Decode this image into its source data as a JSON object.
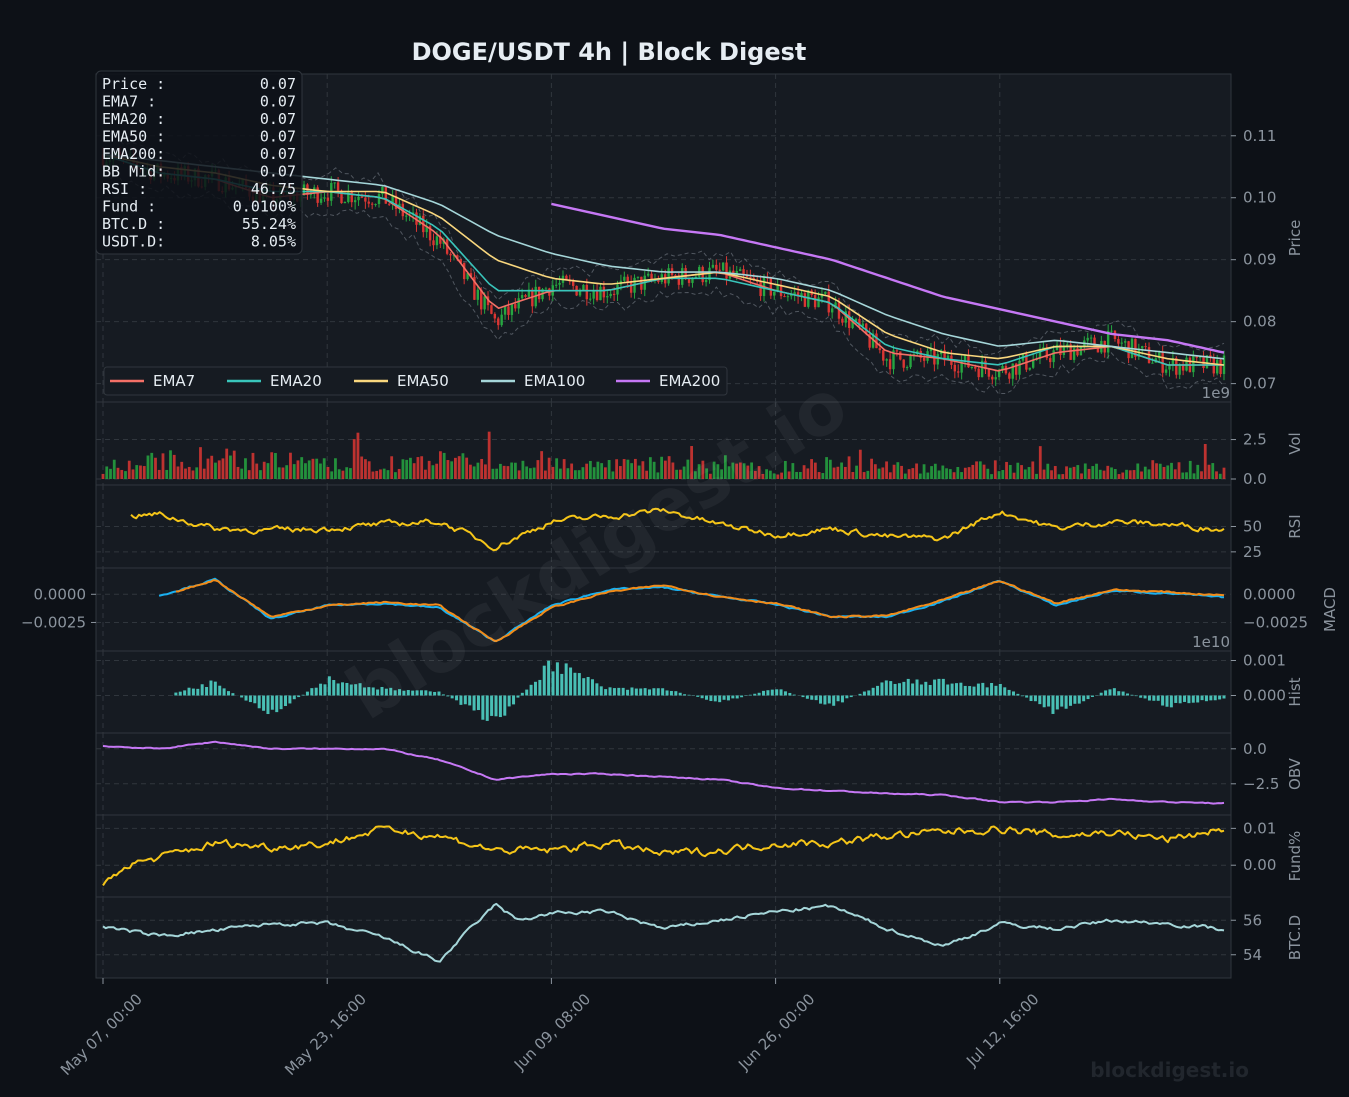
{
  "title": "DOGE/USDT  4h  |  Block Digest",
  "watermark": "blockdigest.io",
  "footer_brand": "blockdigest.io",
  "colors": {
    "background": "#0d1117",
    "panel": "#161b22",
    "grid": "#30363d",
    "axis_text": "#8b949e",
    "up": "#26a641",
    "down": "#da3633",
    "ema7": "#f47067",
    "ema20": "#39c5bb",
    "ema50": "#f9d77e",
    "ema100": "#a5d6d9",
    "ema200": "#c678f5",
    "rsi": "#f5c518",
    "macd": "#1ab0f0",
    "signal": "#f28b18",
    "hist": "#4fd1c5",
    "obv": "#c678f5",
    "funding": "#f5c518",
    "btcd": "#a5d6d9"
  },
  "info_box": [
    {
      "label": "Price :",
      "value": "0.07"
    },
    {
      "label": "EMA7  :",
      "value": "0.07"
    },
    {
      "label": "EMA20 :",
      "value": "0.07"
    },
    {
      "label": "EMA50 :",
      "value": "0.07"
    },
    {
      "label": "EMA200:",
      "value": "0.07"
    },
    {
      "label": "BB Mid:",
      "value": "0.07"
    },
    {
      "label": "RSI   :",
      "value": "46.75"
    },
    {
      "label": "Fund  :",
      "value": "0.0100%"
    },
    {
      "label": "BTC.D :",
      "value": "55.24%"
    },
    {
      "label": "USDT.D:",
      "value": "8.05%"
    }
  ],
  "legend": [
    {
      "name": "EMA7",
      "color_key": "ema7"
    },
    {
      "name": "EMA20",
      "color_key": "ema20"
    },
    {
      "name": "EMA50",
      "color_key": "ema50"
    },
    {
      "name": "EMA100",
      "color_key": "ema100"
    },
    {
      "name": "EMA200",
      "color_key": "ema200"
    }
  ],
  "x_ticks": [
    "May 07, 00:00",
    "May 23, 16:00",
    "Jun 09, 08:00",
    "Jun 26, 00:00",
    "Jul 12, 16:00"
  ],
  "chart_data": {
    "type": "line",
    "x_start": "May 07, 00:00",
    "x_end": "Jul 29, 00:00",
    "x_interval": "4h",
    "panels": [
      {
        "id": "price",
        "ylabel": "Price",
        "ylim": [
          0.068,
          0.119
        ],
        "yticks": [
          0.07,
          0.08,
          0.09,
          0.1,
          0.11
        ],
        "ytick_labels": [
          "0.07",
          "0.08",
          "0.09",
          "0.10",
          "0.11"
        ],
        "series": [
          {
            "name": "Price",
            "color_key": "ema7",
            "x": [
              0,
              5,
              10,
              15,
              20,
              25,
              30,
              35,
              40,
              45,
              50,
              55,
              60,
              65,
              70,
              75,
              80,
              85,
              90,
              95,
              100
            ],
            "values": [
              0.107,
              0.104,
              0.103,
              0.1,
              0.101,
              0.1,
              0.093,
              0.08,
              0.086,
              0.085,
              0.087,
              0.088,
              0.085,
              0.083,
              0.074,
              0.074,
              0.072,
              0.075,
              0.077,
              0.073,
              0.073
            ]
          },
          {
            "name": "EMA7",
            "color_key": "ema7",
            "x": [
              0,
              5,
              10,
              15,
              20,
              25,
              30,
              35,
              40,
              45,
              50,
              55,
              60,
              65,
              70,
              75,
              80,
              85,
              90,
              95,
              100
            ],
            "values": [
              0.107,
              0.104,
              0.103,
              0.1,
              0.101,
              0.1,
              0.094,
              0.082,
              0.085,
              0.085,
              0.087,
              0.088,
              0.085,
              0.083,
              0.075,
              0.074,
              0.072,
              0.075,
              0.076,
              0.073,
              0.073
            ]
          },
          {
            "name": "EMA20",
            "color_key": "ema20",
            "x": [
              0,
              5,
              10,
              15,
              20,
              25,
              30,
              35,
              40,
              45,
              50,
              55,
              60,
              65,
              70,
              75,
              80,
              85,
              90,
              95,
              100
            ],
            "values": [
              0.107,
              0.104,
              0.103,
              0.101,
              0.101,
              0.1,
              0.095,
              0.085,
              0.085,
              0.085,
              0.087,
              0.087,
              0.085,
              0.083,
              0.076,
              0.074,
              0.073,
              0.076,
              0.076,
              0.073,
              0.073
            ]
          },
          {
            "name": "EMA50",
            "color_key": "ema50",
            "x": [
              0,
              5,
              10,
              15,
              20,
              25,
              30,
              35,
              40,
              45,
              50,
              55,
              60,
              65,
              70,
              75,
              80,
              85,
              90,
              95,
              100
            ],
            "values": [
              0.107,
              0.105,
              0.104,
              0.102,
              0.101,
              0.101,
              0.097,
              0.09,
              0.087,
              0.086,
              0.087,
              0.088,
              0.086,
              0.084,
              0.078,
              0.075,
              0.074,
              0.076,
              0.076,
              0.074,
              0.073
            ]
          },
          {
            "name": "EMA100",
            "color_key": "ema100",
            "x": [
              0,
              5,
              10,
              15,
              20,
              25,
              30,
              35,
              40,
              45,
              50,
              55,
              60,
              65,
              70,
              75,
              80,
              85,
              90,
              95,
              100
            ],
            "values": [
              0.107,
              0.106,
              0.105,
              0.104,
              0.103,
              0.102,
              0.099,
              0.094,
              0.091,
              0.089,
              0.088,
              0.088,
              0.087,
              0.085,
              0.081,
              0.078,
              0.076,
              0.077,
              0.076,
              0.075,
              0.074
            ]
          },
          {
            "name": "EMA200",
            "color_key": "ema200",
            "x": [
              40,
              45,
              50,
              55,
              60,
              65,
              70,
              75,
              80,
              85,
              90,
              95,
              100
            ],
            "values": [
              0.099,
              0.097,
              0.095,
              0.094,
              0.092,
              0.09,
              0.087,
              0.084,
              0.082,
              0.08,
              0.078,
              0.077,
              0.075
            ]
          }
        ]
      },
      {
        "id": "volume",
        "ylabel": "Vol",
        "ylim": [
          0,
          4.5
        ],
        "yticks": [
          0,
          2.5
        ],
        "ytick_labels": [
          "0.0",
          "2.5"
        ],
        "offset_label": "1e9",
        "series": [
          {
            "name": "Volume",
            "color_key": "up",
            "x": [
              0,
              5,
              10,
              15,
              20,
              25,
              30,
              35,
              40,
              45,
              50,
              55,
              60,
              65,
              70,
              75,
              80,
              85,
              90,
              95,
              100
            ],
            "values": [
              0.9,
              1.3,
              1.6,
              1.4,
              1.0,
              1.1,
              1.4,
              1.0,
              1.2,
              0.9,
              1.1,
              0.9,
              0.8,
              1.1,
              1.0,
              0.8,
              0.9,
              0.8,
              0.7,
              1.0,
              0.7
            ]
          }
        ]
      },
      {
        "id": "rsi",
        "ylabel": "RSI",
        "ylim": [
          15,
          85
        ],
        "yticks": [
          25,
          50
        ],
        "ytick_labels": [
          "25",
          "50"
        ],
        "series": [
          {
            "name": "RSI",
            "color_key": "rsi",
            "x": [
              2.5,
              5,
              10,
              15,
              20,
              25,
              30,
              35,
              40,
              45,
              50,
              55,
              60,
              65,
              70,
              75,
              80,
              85,
              90,
              95,
              100
            ],
            "values": [
              60,
              62,
              48,
              46,
              48,
              52,
              55,
              30,
              55,
              60,
              66,
              52,
              42,
              48,
              40,
              38,
              65,
              48,
              55,
              52,
              47
            ]
          }
        ]
      },
      {
        "id": "macd",
        "ylabel": "MACD",
        "ylim": [
          -0.0045,
          0.0018
        ],
        "yticks": [
          -0.0025,
          0.0
        ],
        "ytick_labels": [
          "−0.0025",
          "0.0000"
        ],
        "series": [
          {
            "name": "MACD",
            "color_key": "macd",
            "x": [
              5,
              10,
              15,
              20,
              25,
              30,
              35,
              40,
              45,
              50,
              55,
              60,
              65,
              70,
              75,
              80,
              85,
              90,
              95,
              100
            ],
            "values": [
              -0.0001,
              0.0013,
              -0.0022,
              -0.001,
              -0.0008,
              -0.0012,
              -0.0042,
              -0.001,
              0.0004,
              0.0006,
              -0.0002,
              -0.0009,
              -0.002,
              -0.002,
              -0.0006,
              0.0012,
              -0.001,
              0.0003,
              0.0001,
              -0.0003
            ]
          },
          {
            "name": "Signal",
            "color_key": "signal",
            "x": [
              6.5,
              10,
              15,
              20,
              25,
              30,
              35,
              40,
              45,
              50,
              55,
              60,
              65,
              70,
              75,
              80,
              85,
              90,
              95,
              100
            ],
            "values": [
              0.0002,
              0.0013,
              -0.002,
              -0.001,
              -0.0007,
              -0.001,
              -0.0042,
              -0.0012,
              0.0002,
              0.0008,
              -0.0002,
              -0.0008,
              -0.002,
              -0.0019,
              -0.0005,
              0.0012,
              -0.0008,
              0.0004,
              0.0002,
              -0.0001
            ]
          }
        ]
      },
      {
        "id": "hist",
        "ylabel": "Hist",
        "ylim": [
          -0.0009,
          0.0011
        ],
        "yticks": [
          0.0,
          0.001
        ],
        "ytick_labels": [
          "0.000",
          "0.001"
        ],
        "offset_label": "1e10",
        "series": [
          {
            "name": "Hist",
            "color_key": "hist",
            "x": [
              6.5,
              10,
              15,
              20,
              25,
              30,
              35,
              40,
              45,
              50,
              55,
              60,
              65,
              70,
              75,
              80,
              85,
              90,
              95,
              100
            ],
            "values": [
              0.0001,
              0.0004,
              -0.0006,
              0.0005,
              0.0002,
              0.0001,
              -0.0008,
              0.001,
              0.0002,
              0.0002,
              -0.0002,
              0.0002,
              -0.0003,
              0.0004,
              0.0004,
              0.0003,
              -0.0005,
              0.0002,
              -0.0003,
              -0.0001
            ]
          }
        ]
      },
      {
        "id": "obv",
        "ylabel": "OBV",
        "ylim": [
          -4.3,
          0.7
        ],
        "yticks": [
          -2.5,
          0.0
        ],
        "ytick_labels": [
          "−2.5",
          "0.0"
        ],
        "series": [
          {
            "name": "OBV",
            "color_key": "obv",
            "x": [
              0,
              5,
              10,
              15,
              20,
              25,
              30,
              35,
              40,
              45,
              50,
              55,
              60,
              65,
              70,
              75,
              80,
              85,
              90,
              95,
              100
            ],
            "values": [
              0.2,
              0.0,
              0.5,
              0.0,
              0.0,
              0.0,
              -0.8,
              -2.2,
              -1.8,
              -1.8,
              -2.0,
              -2.2,
              -2.8,
              -3.0,
              -3.2,
              -3.3,
              -3.8,
              -3.8,
              -3.6,
              -3.8,
              -3.9
            ]
          }
        ]
      },
      {
        "id": "funding",
        "ylabel": "Fund%",
        "ylim": [
          -0.007,
          0.012
        ],
        "yticks": [
          0.0,
          0.01
        ],
        "ytick_labels": [
          "0.00",
          "0.01"
        ],
        "series": [
          {
            "name": "Funding",
            "color_key": "funding",
            "x": [
              0,
              2,
              5,
              10,
              15,
              20,
              25,
              30,
              35,
              40,
              45,
              50,
              55,
              60,
              65,
              70,
              75,
              80,
              85,
              90,
              95,
              100
            ],
            "values": [
              -0.006,
              0.0,
              0.002,
              0.006,
              0.005,
              0.006,
              0.01,
              0.008,
              0.004,
              0.004,
              0.006,
              0.003,
              0.004,
              0.006,
              0.006,
              0.008,
              0.009,
              0.01,
              0.008,
              0.009,
              0.007,
              0.01
            ]
          }
        ]
      },
      {
        "id": "btcd",
        "ylabel": "BTC.D",
        "ylim": [
          53.0,
          57.0
        ],
        "yticks": [
          54,
          56
        ],
        "ytick_labels": [
          "54",
          "56"
        ],
        "series": [
          {
            "name": "BTC.D",
            "color_key": "btcd",
            "x": [
              0,
              5,
              10,
              15,
              20,
              25,
              30,
              32,
              35,
              37,
              40,
              45,
              50,
              55,
              60,
              65,
              70,
              75,
              80,
              85,
              90,
              95,
              100
            ],
            "values": [
              55.6,
              55.1,
              55.4,
              55.8,
              55.8,
              55.0,
              53.6,
              55.0,
              56.9,
              56.0,
              56.4,
              56.5,
              55.5,
              56.0,
              56.5,
              56.8,
              55.5,
              54.5,
              55.8,
              55.5,
              56.0,
              55.8,
              55.5
            ]
          }
        ]
      }
    ]
  }
}
